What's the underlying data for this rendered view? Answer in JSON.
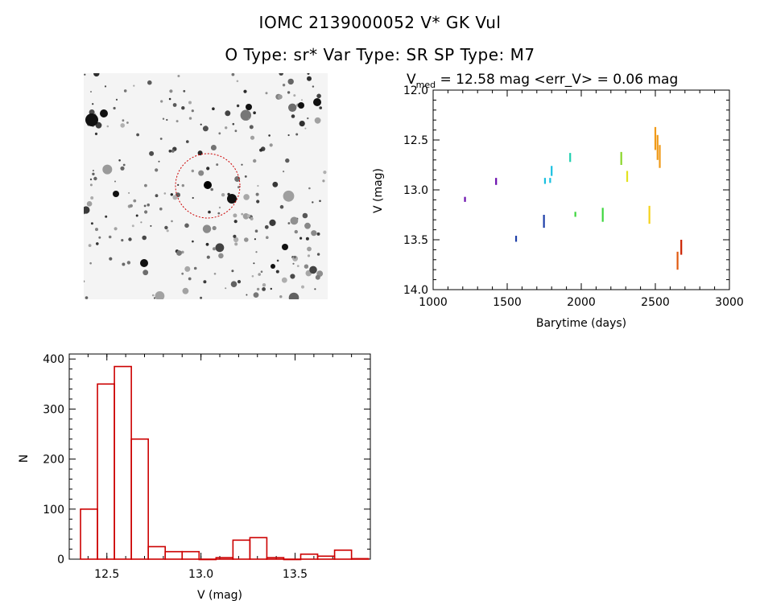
{
  "header": {
    "title": "IOMC 2139000052    V* GK Vul",
    "subtitle": "O Type: sr*  Var Type: SR  SP Type: M7"
  },
  "finder": {
    "description_icon": "star-field-image",
    "colors": {
      "stars": "#000000",
      "circle": "#cc0000"
    }
  },
  "lightcurve": {
    "title_prefix": "V",
    "title_sub": "med",
    "title_rest": " = 12.58 mag <err_V> = 0.06 mag"
  },
  "chart_data": [
    {
      "type": "scatter",
      "xlabel": "Barytime (days)",
      "ylabel": "V (mag)",
      "xlim": [
        1000,
        3000
      ],
      "ylim": [
        14.0,
        12.0
      ],
      "y_inverted": true,
      "xticks": [
        "1000",
        "1500",
        "2000",
        "2500",
        "3000"
      ],
      "yticks": [
        "12.0",
        "12.5",
        "13.0",
        "13.5",
        "14.0"
      ],
      "grid": false,
      "segments": [
        {
          "x": 1215,
          "y1": 13.07,
          "y2": 13.12,
          "color": "#6a0dad"
        },
        {
          "x": 1425,
          "y1": 12.88,
          "y2": 12.95,
          "color": "#6a0dad"
        },
        {
          "x": 1560,
          "y1": 13.46,
          "y2": 13.52,
          "color": "#1e3fa8"
        },
        {
          "x": 1748,
          "y1": 13.25,
          "y2": 13.38,
          "color": "#1e3fa8"
        },
        {
          "x": 1755,
          "y1": 12.88,
          "y2": 12.94,
          "color": "#19c0e0"
        },
        {
          "x": 1790,
          "y1": 12.88,
          "y2": 12.93,
          "color": "#19c0e0"
        },
        {
          "x": 1800,
          "y1": 12.76,
          "y2": 12.86,
          "color": "#19c0e0"
        },
        {
          "x": 1925,
          "y1": 12.63,
          "y2": 12.72,
          "color": "#20d0b0"
        },
        {
          "x": 1960,
          "y1": 13.22,
          "y2": 13.27,
          "color": "#3ed63e"
        },
        {
          "x": 2145,
          "y1": 13.18,
          "y2": 13.32,
          "color": "#3ed63e"
        },
        {
          "x": 2270,
          "y1": 12.62,
          "y2": 12.75,
          "color": "#8ad62a"
        },
        {
          "x": 2310,
          "y1": 12.81,
          "y2": 12.92,
          "color": "#e3e21e"
        },
        {
          "x": 2460,
          "y1": 13.16,
          "y2": 13.34,
          "color": "#f5d21a"
        },
        {
          "x": 2500,
          "y1": 12.37,
          "y2": 12.6,
          "color": "#f09a18"
        },
        {
          "x": 2515,
          "y1": 12.45,
          "y2": 12.7,
          "color": "#f09a18"
        },
        {
          "x": 2530,
          "y1": 12.55,
          "y2": 12.78,
          "color": "#f09a18"
        },
        {
          "x": 2650,
          "y1": 13.62,
          "y2": 13.8,
          "color": "#e05a10"
        },
        {
          "x": 2675,
          "y1": 13.5,
          "y2": 13.65,
          "color": "#cc2200"
        }
      ]
    },
    {
      "type": "bar",
      "subtype": "histogram",
      "xlabel": "V (mag)",
      "ylabel": "N",
      "xlim": [
        12.3,
        13.9
      ],
      "ylim": [
        0,
        410
      ],
      "xticks": [
        "12.5",
        "13.0",
        "13.5"
      ],
      "yticks": [
        "0",
        "100",
        "200",
        "300",
        "400"
      ],
      "bar_color": "#cc0000",
      "bin_width": 0.09,
      "bins": [
        {
          "left": 12.36,
          "value": 100
        },
        {
          "left": 12.45,
          "value": 350
        },
        {
          "left": 12.54,
          "value": 385
        },
        {
          "left": 12.63,
          "value": 240
        },
        {
          "left": 12.72,
          "value": 25
        },
        {
          "left": 12.81,
          "value": 15
        },
        {
          "left": 12.9,
          "value": 15
        },
        {
          "left": 12.99,
          "value": 0
        },
        {
          "left": 13.08,
          "value": 3
        },
        {
          "left": 13.17,
          "value": 38
        },
        {
          "left": 13.26,
          "value": 43
        },
        {
          "left": 13.35,
          "value": 3
        },
        {
          "left": 13.44,
          "value": 0
        },
        {
          "left": 13.53,
          "value": 10
        },
        {
          "left": 13.62,
          "value": 6
        },
        {
          "left": 13.71,
          "value": 18
        },
        {
          "left": 13.8,
          "value": 1
        }
      ]
    }
  ]
}
